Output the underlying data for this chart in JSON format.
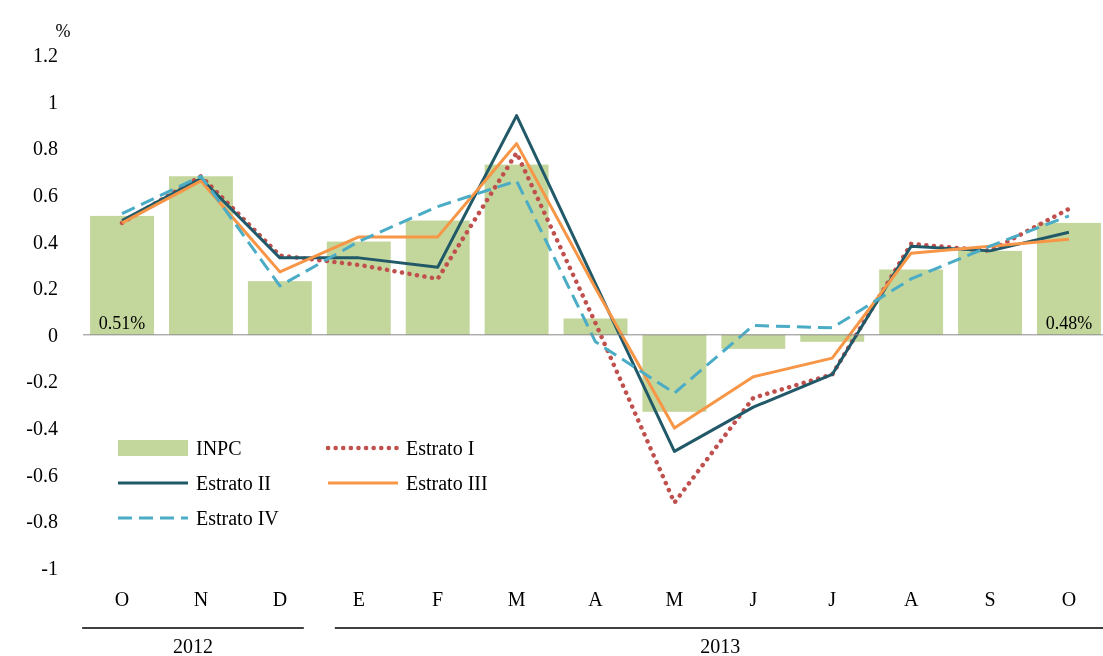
{
  "chart_data": {
    "type": "bar",
    "ylabel": "%",
    "categories": [
      "O",
      "N",
      "D",
      "E",
      "F",
      "M",
      "A",
      "M",
      "J",
      "J",
      "A",
      "S",
      "O"
    ],
    "series": [
      {
        "name": "INPC",
        "color": "#c3d69b",
        "values": [
          0.51,
          0.68,
          0.23,
          0.4,
          0.49,
          0.73,
          0.07,
          -0.33,
          -0.06,
          -0.03,
          0.28,
          0.36,
          0.48
        ],
        "value_labels": [
          "0.51%",
          null,
          null,
          null,
          null,
          null,
          null,
          null,
          null,
          null,
          null,
          null,
          "0.48%"
        ]
      },
      {
        "name": "Estrato I",
        "type": "line",
        "color": "#c0504d",
        "line_style": "dotted",
        "values": [
          0.48,
          0.68,
          0.34,
          0.3,
          0.24,
          0.78,
          0.05,
          -0.72,
          -0.27,
          -0.17,
          0.39,
          0.36,
          0.54
        ]
      },
      {
        "name": "Estrato II",
        "type": "line",
        "color": "#215968",
        "line_style": "solid",
        "values": [
          0.49,
          0.67,
          0.33,
          0.33,
          0.29,
          0.94,
          0.22,
          -0.5,
          -0.31,
          -0.17,
          0.38,
          0.36,
          0.44
        ]
      },
      {
        "name": "Estrato III",
        "type": "line",
        "color": "#f79646",
        "line_style": "solid",
        "values": [
          0.48,
          0.66,
          0.27,
          0.42,
          0.42,
          0.82,
          0.2,
          -0.4,
          -0.18,
          -0.1,
          0.35,
          0.38,
          0.41
        ]
      },
      {
        "name": "Estrato IV",
        "type": "line",
        "color": "#4bacc6",
        "line_style": "dashed",
        "values": [
          0.52,
          0.68,
          0.21,
          0.4,
          0.55,
          0.66,
          -0.03,
          -0.25,
          0.04,
          0.03,
          0.24,
          0.38,
          0.51
        ]
      }
    ],
    "ylim": [
      -1,
      1.2
    ],
    "yticks": [
      1.2,
      1,
      0.8,
      0.6,
      0.4,
      0.2,
      0,
      -0.2,
      -0.4,
      -0.6,
      -0.8,
      -1
    ],
    "legend": "bottom left",
    "annotations": [
      "2012",
      "2013"
    ]
  }
}
